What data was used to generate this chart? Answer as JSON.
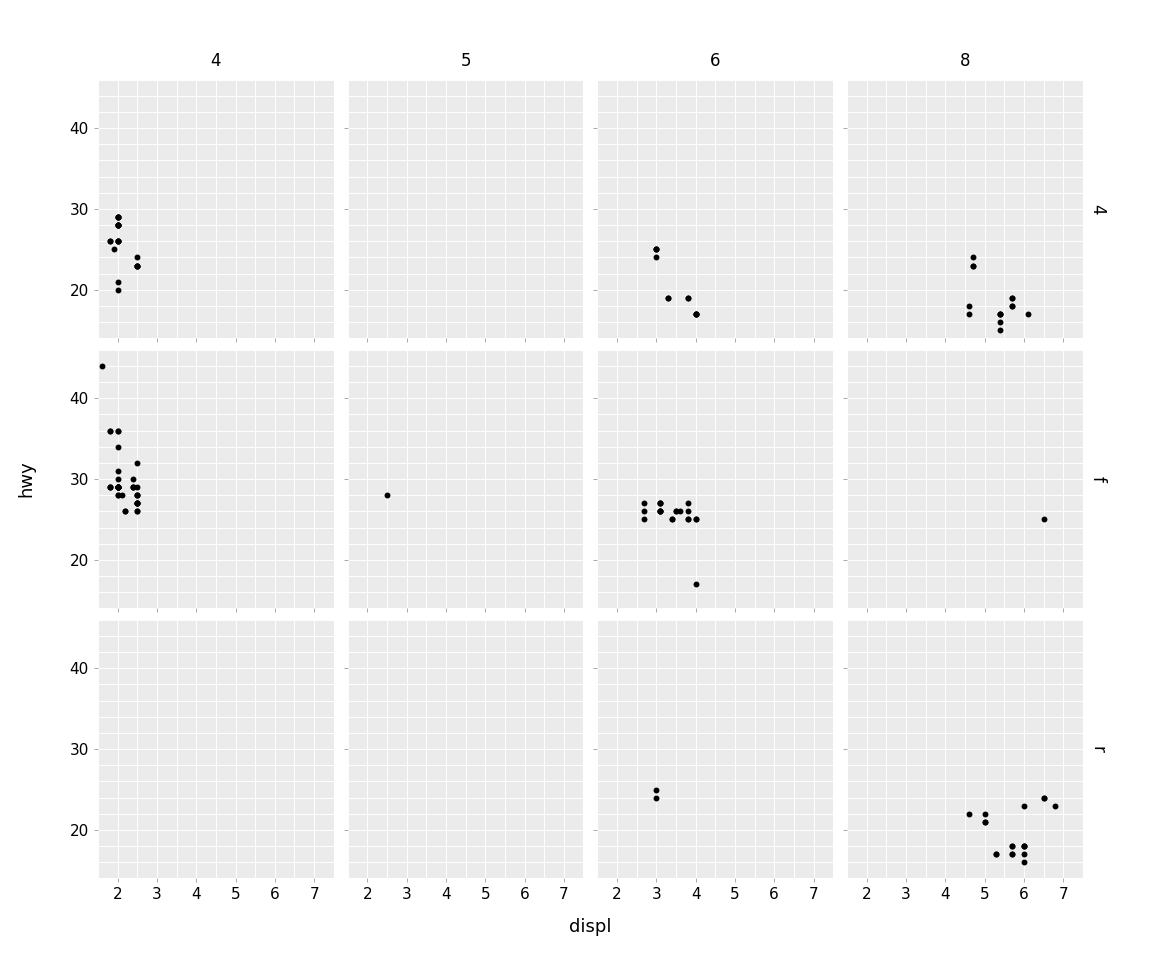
{
  "title": "",
  "xlabel": "displ",
  "ylabel": "hwy",
  "col_labels": [
    "4",
    "5",
    "6",
    "8"
  ],
  "row_labels": [
    "4",
    "f",
    "r"
  ],
  "figure_bg": "#FFFFFF",
  "panel_color": "#EBEBEB",
  "strip_color": "#D9D9D9",
  "grid_color": "#FFFFFF",
  "point_color": "black",
  "point_size": 18,
  "xlim": [
    1.5,
    7.5
  ],
  "ylim": [
    14,
    46
  ],
  "xticks": [
    2,
    3,
    4,
    5,
    6,
    7
  ],
  "yticks": [
    20,
    30,
    40
  ],
  "points": {
    "4_4": {
      "displ": [
        1.8,
        1.8,
        2.0,
        2.0,
        2.0,
        2.0,
        2.0,
        2.0,
        2.0,
        2.0,
        2.0,
        2.0,
        2.0,
        2.0,
        2.0,
        2.5,
        2.5,
        2.5,
        2.5,
        2.5,
        1.9,
        2.0,
        2.0
      ],
      "hwy": [
        26,
        26,
        28,
        28,
        26,
        26,
        28,
        28,
        29,
        26,
        26,
        28,
        29,
        29,
        29,
        23,
        24,
        23,
        23,
        23,
        25,
        21,
        20
      ]
    },
    "5_4": {
      "displ": [],
      "hwy": []
    },
    "6_4": {
      "displ": [
        3.0,
        3.0,
        3.0,
        3.0,
        3.3,
        3.3,
        3.8,
        3.8,
        4.0,
        4.0,
        4.0,
        4.0
      ],
      "hwy": [
        25,
        25,
        24,
        25,
        19,
        19,
        19,
        19,
        17,
        17,
        17,
        17
      ]
    },
    "8_4": {
      "displ": [
        4.7,
        4.7,
        4.7,
        5.7,
        5.7,
        5.7,
        5.7,
        6.1,
        4.6,
        4.6,
        5.4,
        5.4,
        5.4,
        5.4,
        5.4
      ],
      "hwy": [
        24,
        23,
        23,
        19,
        19,
        18,
        18,
        17,
        18,
        17,
        17,
        17,
        16,
        17,
        15
      ]
    },
    "4_f": {
      "displ": [
        1.8,
        1.8,
        2.0,
        2.0,
        2.0,
        2.0,
        2.0,
        2.0,
        2.0,
        2.0,
        2.0,
        2.0,
        2.0,
        2.1,
        2.2,
        2.2,
        2.4,
        2.4,
        2.4,
        2.4,
        2.5,
        2.5,
        2.5,
        2.5,
        2.5,
        2.5,
        2.5,
        2.5,
        2.5,
        2.5,
        2.5,
        2.5,
        1.6,
        1.8,
        1.8,
        1.8,
        2.0,
        2.0,
        2.0,
        2.0,
        2.0
      ],
      "hwy": [
        29,
        29,
        31,
        30,
        29,
        29,
        28,
        29,
        29,
        28,
        29,
        29,
        29,
        28,
        26,
        26,
        30,
        29,
        29,
        29,
        27,
        27,
        27,
        27,
        29,
        28,
        28,
        32,
        26,
        26,
        27,
        28,
        44,
        36,
        36,
        29,
        29,
        34,
        36,
        36,
        29
      ]
    },
    "5_f": {
      "displ": [
        2.5
      ],
      "hwy": [
        28
      ]
    },
    "6_f": {
      "displ": [
        3.1,
        3.1,
        3.1,
        3.1,
        3.1,
        3.1,
        3.1,
        3.5,
        3.5,
        3.6,
        3.8,
        3.8,
        3.8,
        3.8,
        4.0,
        4.0,
        2.7,
        2.7,
        2.7,
        3.4,
        3.4,
        4.0
      ],
      "hwy": [
        26,
        26,
        27,
        27,
        27,
        26,
        26,
        26,
        26,
        26,
        26,
        25,
        25,
        27,
        25,
        25,
        26,
        27,
        25,
        25,
        25,
        17
      ]
    },
    "8_f": {
      "displ": [
        6.5
      ],
      "hwy": [
        25
      ]
    },
    "4_r": {
      "displ": [],
      "hwy": []
    },
    "5_r": {
      "displ": [],
      "hwy": []
    },
    "6_r": {
      "displ": [
        3.0,
        3.0
      ],
      "hwy": [
        25,
        24
      ]
    },
    "8_r": {
      "displ": [
        4.6,
        5.0,
        5.0,
        5.0,
        5.3,
        5.3,
        5.7,
        5.7,
        5.7,
        5.7,
        6.0,
        6.0,
        6.0,
        6.0,
        6.0,
        6.0,
        6.5,
        6.5,
        6.8
      ],
      "hwy": [
        22,
        21,
        21,
        22,
        17,
        17,
        17,
        18,
        18,
        17,
        16,
        18,
        18,
        18,
        17,
        23,
        24,
        24,
        23
      ]
    }
  }
}
